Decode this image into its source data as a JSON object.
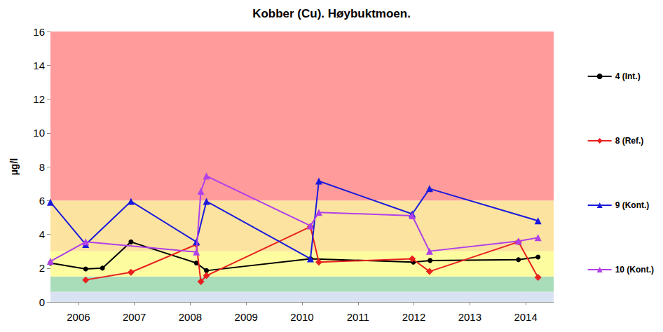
{
  "chart_data": {
    "type": "line",
    "title": "Kobber (Cu). Høybuktmoen.",
    "y_label": "µg/l",
    "xlim": [
      2006,
      2015
    ],
    "xticks": [
      {
        "value": 2006.5,
        "label": "2006"
      },
      {
        "value": 2007.5,
        "label": "2007"
      },
      {
        "value": 2008.5,
        "label": "2008"
      },
      {
        "value": 2009.5,
        "label": "2009"
      },
      {
        "value": 2010.5,
        "label": "2010"
      },
      {
        "value": 2011.5,
        "label": "2011"
      },
      {
        "value": 2012.5,
        "label": "2012"
      },
      {
        "value": 2013.5,
        "label": "2013"
      },
      {
        "value": 2014.5,
        "label": "2014"
      }
    ],
    "ylim": [
      0,
      16
    ],
    "yticks": [
      0,
      2,
      4,
      6,
      8,
      10,
      12,
      14,
      16
    ],
    "grid": false,
    "legend": "right",
    "bands": [
      {
        "from": 0,
        "to": 0.6,
        "color": "#d9e2f3"
      },
      {
        "from": 0.6,
        "to": 1.5,
        "color": "#a9dcb9"
      },
      {
        "from": 1.5,
        "to": 3,
        "color": "#fdfda0"
      },
      {
        "from": 3,
        "to": 6,
        "color": "#fde3a0"
      },
      {
        "from": 6,
        "to": 16,
        "color": "#ff9b9b"
      }
    ],
    "series": [
      {
        "name": "4 (Int.)",
        "color": "#000000",
        "marker": "circle",
        "x": [
          2006.0,
          2006.63,
          2006.93,
          2007.44,
          2008.61,
          2008.79,
          2010.65,
          2012.49,
          2012.79,
          2014.37,
          2014.72
        ],
        "values": [
          2.3,
          1.95,
          2.0,
          3.55,
          2.3,
          1.85,
          2.55,
          2.35,
          2.45,
          2.5,
          2.65
        ]
      },
      {
        "name": "8 (Ref.)",
        "color": "#e8201e",
        "marker": "diamond",
        "x": [
          2006.63,
          2007.44,
          2008.61,
          2008.69,
          2008.79,
          2010.65,
          2010.8,
          2012.47,
          2012.78,
          2014.37,
          2014.72
        ],
        "values": [
          1.3,
          1.75,
          3.4,
          1.2,
          1.55,
          4.45,
          2.35,
          2.55,
          1.8,
          3.55,
          1.45
        ]
      },
      {
        "name": "9 (Kont.)",
        "color": "#1a1adc",
        "marker": "triangle",
        "x": [
          2006.0,
          2006.63,
          2007.44,
          2008.61,
          2008.79,
          2010.65,
          2010.8,
          2012.47,
          2012.78,
          2014.72
        ],
        "values": [
          5.9,
          3.4,
          5.95,
          3.55,
          5.95,
          2.55,
          7.15,
          5.2,
          6.7,
          4.8
        ]
      },
      {
        "name": "10 (Kont.)",
        "color": "#b040e8",
        "marker": "triangle",
        "x": [
          2006.0,
          2006.63,
          2008.61,
          2008.69,
          2008.79,
          2010.65,
          2010.8,
          2012.47,
          2012.78,
          2014.37,
          2014.72
        ],
        "values": [
          2.4,
          3.55,
          2.95,
          6.55,
          7.45,
          4.5,
          5.3,
          5.1,
          3.0,
          3.6,
          3.8
        ]
      }
    ]
  }
}
